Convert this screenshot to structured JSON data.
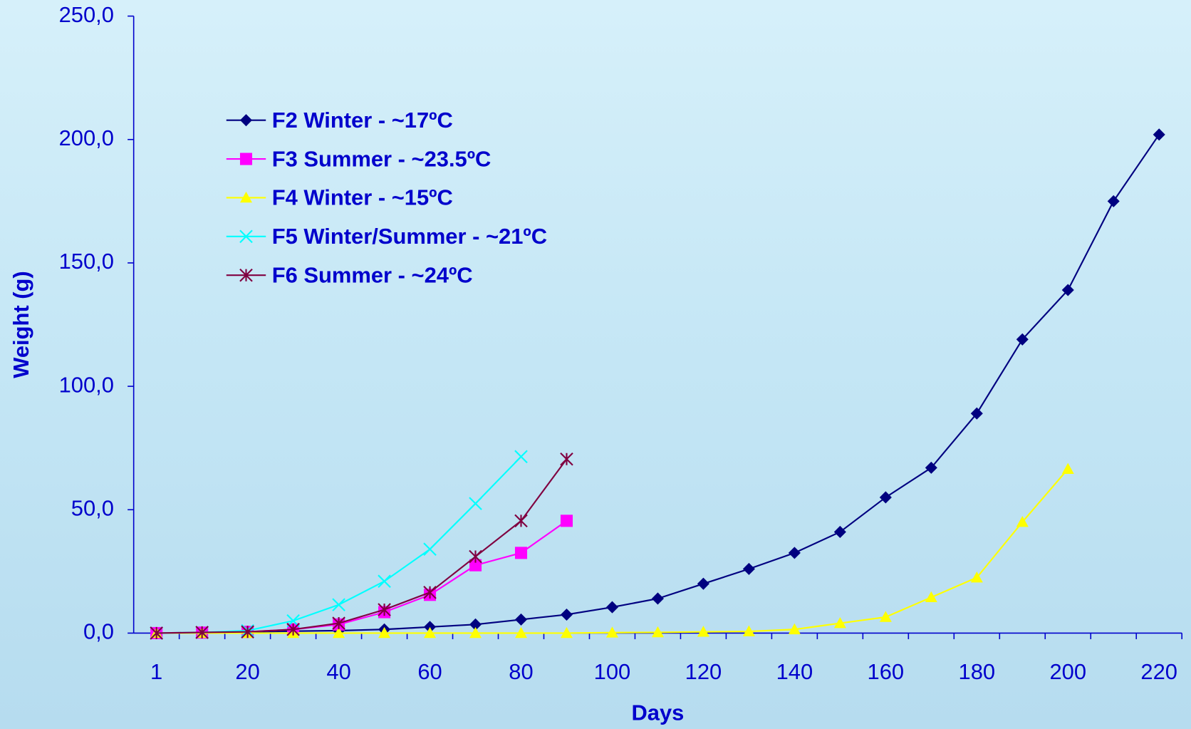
{
  "chart_data": {
    "type": "line",
    "x_label": "Days",
    "y_label": "Weight (g)",
    "categories": [
      1,
      null,
      20,
      null,
      40,
      null,
      60,
      null,
      80,
      null,
      100,
      null,
      120,
      null,
      140,
      null,
      160,
      null,
      180,
      null,
      200,
      null,
      220
    ],
    "ylim": [
      0,
      250
    ],
    "yticks": [
      {
        "value": 0,
        "label": "0,0"
      },
      {
        "value": 50,
        "label": "50,0"
      },
      {
        "value": 100,
        "label": "100,0"
      },
      {
        "value": 150,
        "label": "150,0"
      },
      {
        "value": 200,
        "label": "200,0"
      },
      {
        "value": 250,
        "label": "250,0"
      }
    ],
    "legend": "upper left",
    "series": [
      {
        "name": "F2 Winter - ~17ºC",
        "color": "#000080",
        "marker": "diamond",
        "values": [
          0,
          0.2,
          0.5,
          0.8,
          1,
          1.5,
          2.5,
          3.5,
          5.5,
          7.5,
          10.5,
          14,
          20,
          26,
          32.5,
          41,
          55,
          67,
          89,
          119,
          139,
          175,
          202
        ]
      },
      {
        "name": "F3 Summer - ~23.5ºC",
        "color": "#ff00ff",
        "marker": "square",
        "values": [
          0,
          0.2,
          0.5,
          1.5,
          3.5,
          8.5,
          15.5,
          27.5,
          32.5,
          45.5,
          null,
          null,
          null,
          null,
          null,
          null,
          null,
          null,
          null,
          null,
          null,
          null,
          null
        ]
      },
      {
        "name": "F4 Winter - ~15ºC",
        "color": "#ffff00",
        "marker": "triangle",
        "values": [
          0,
          0,
          0,
          0,
          0,
          0,
          0,
          0,
          0,
          0,
          0.2,
          0.3,
          0.5,
          0.7,
          1.5,
          4,
          6.5,
          14.5,
          22.5,
          45,
          66.5,
          null,
          null
        ]
      },
      {
        "name": "F5 Winter/Summer - ~21ºC",
        "color": "#00ffff",
        "marker": "x",
        "values": [
          0,
          0.3,
          1,
          5,
          11.5,
          21,
          34,
          52.5,
          71.5,
          null,
          null,
          null,
          null,
          null,
          null,
          null,
          null,
          null,
          null,
          null,
          null,
          null,
          null
        ]
      },
      {
        "name": "F6 Summer - ~24ºC",
        "color": "#800040",
        "marker": "star",
        "values": [
          0,
          0.3,
          0.5,
          1.5,
          4,
          9.5,
          16.5,
          31,
          45.5,
          70.5,
          null,
          null,
          null,
          null,
          null,
          null,
          null,
          null,
          null,
          null,
          null,
          null,
          null
        ]
      }
    ]
  }
}
